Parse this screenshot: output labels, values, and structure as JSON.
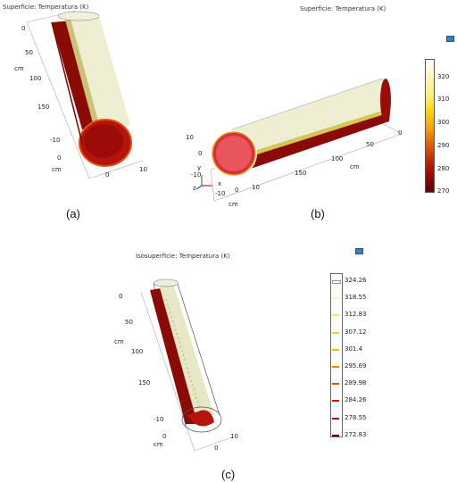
{
  "captions": {
    "a": "(a)",
    "b": "(b)",
    "c": "(c)"
  },
  "panel_a": {
    "title": "Superficie: Temperatura (K)",
    "ticks_vertical": [
      "0",
      "50",
      "100",
      "150",
      "0",
      "-10"
    ],
    "ticks_horizontal": [
      "0",
      "10"
    ],
    "axis_unit": "cm"
  },
  "panel_b": {
    "title": "Superficie: Temperatura (K)",
    "ticks_left": [
      "10",
      "0",
      "-10"
    ],
    "ticks_bottom": [
      "-10",
      "0",
      "10"
    ],
    "ticks_right": [
      "0",
      "50",
      "100",
      "150"
    ],
    "axis_unit": "cm",
    "triad": {
      "y": "y",
      "x": "x",
      "z": "z"
    },
    "colorbar": {
      "labels": [
        "320",
        "310",
        "300",
        "290",
        "280",
        "270"
      ],
      "min": 270,
      "max": 325
    }
  },
  "panel_c": {
    "title": "Isosuperficie: Temperatura (K)",
    "ticks_vertical": [
      "0",
      "50",
      "100",
      "150",
      "0",
      "-10"
    ],
    "ticks_horizontal": [
      "0",
      "10"
    ],
    "axis_unit": "cm",
    "iso_levels": [
      "324.26",
      "318.55",
      "312.83",
      "307.12",
      "301.4",
      "295.69",
      "289.98",
      "284.26",
      "278.55",
      "272.83"
    ],
    "iso_colors": [
      "#ffffff",
      "#fff3a8",
      "#ffe25a",
      "#ffd000",
      "#f5b800",
      "#e88a00",
      "#d85000",
      "#c41a00",
      "#a30000",
      "#6a0000"
    ]
  }
}
